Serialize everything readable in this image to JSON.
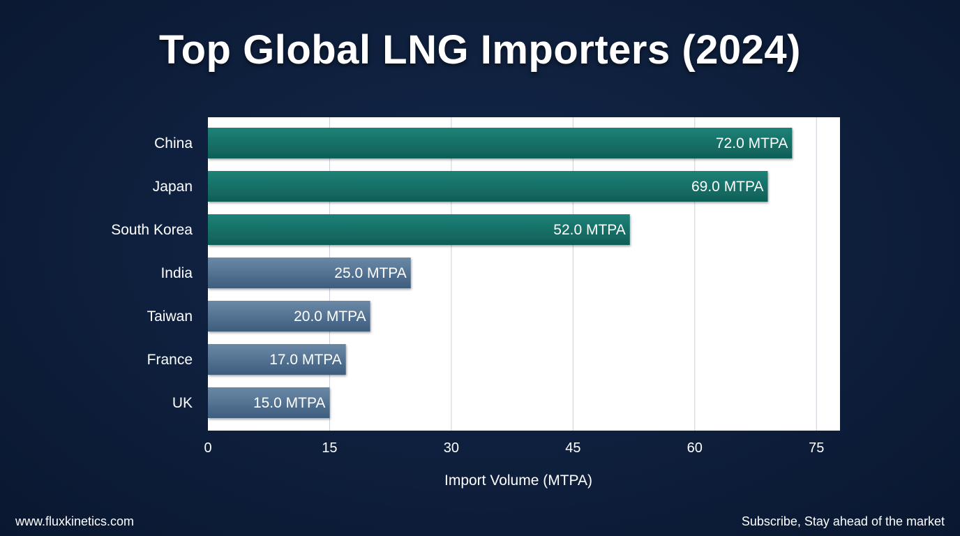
{
  "chart_data": {
    "type": "bar",
    "orientation": "horizontal",
    "title": "Top Global LNG Importers (2024)",
    "categories": [
      "China",
      "Japan",
      "South Korea",
      "India",
      "Taiwan",
      "France",
      "UK"
    ],
    "values": [
      72.0,
      69.0,
      52.0,
      25.0,
      20.0,
      17.0,
      15.0
    ],
    "value_labels": [
      "72.0 MTPA",
      "69.0 MTPA",
      "52.0 MTPA",
      "25.0 MTPA",
      "20.0 MTPA",
      "17.0 MTPA",
      "15.0 MTPA"
    ],
    "xlabel": "Import Volume (MTPA)",
    "ylabel": "",
    "xlim": [
      0,
      78
    ],
    "xticks": [
      0,
      15,
      30,
      45,
      60,
      75
    ],
    "grid": true,
    "colors": {
      "top_group": "#146e66",
      "other_group": "#4a6a8a"
    }
  },
  "footer": {
    "website": "www.fluxkinetics.com",
    "tagline": "Subscribe, Stay ahead of the market"
  }
}
